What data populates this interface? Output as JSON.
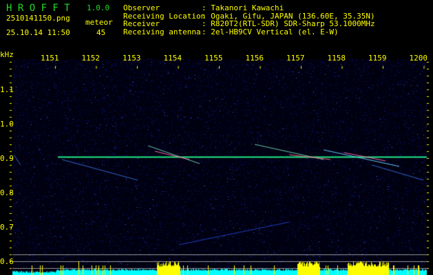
{
  "app": {
    "title": "H R O F F T",
    "version": "1.0.0"
  },
  "file": {
    "name": "2510141150.png",
    "datetime": "25.10.14 11:50"
  },
  "detection": {
    "label": "meteor",
    "count": "45"
  },
  "info": [
    {
      "key": "Observer",
      "value": ": Takanori Kawachi"
    },
    {
      "key": "Receiving Location",
      "value": ": Ogaki, Gifu, JAPAN (136.60E, 35.35N)"
    },
    {
      "key": "Receiver",
      "value": ": R820T2(RTL-SDR) SDR-Sharp 53.1000MHz"
    },
    {
      "key": "Receiving antenna",
      "value": ": 2el-HB9CV Vertical (el. E-W)"
    }
  ],
  "axes": {
    "x_unit": "kHz",
    "x_ticks": [
      "1151",
      "1152",
      "1153",
      "1154",
      "1155",
      "1156",
      "1157",
      "1158",
      "1159",
      "1200"
    ],
    "y_ticks": [
      "1.1",
      "1.0",
      "0.9",
      "0.8",
      "0.7",
      "0.6"
    ]
  },
  "colors": {
    "text": "#ffff00",
    "title": "#22dd22",
    "background": "#000010",
    "carrier": "#22ee88",
    "level_low": "#00ffff",
    "level_high": "#ffff00"
  }
}
